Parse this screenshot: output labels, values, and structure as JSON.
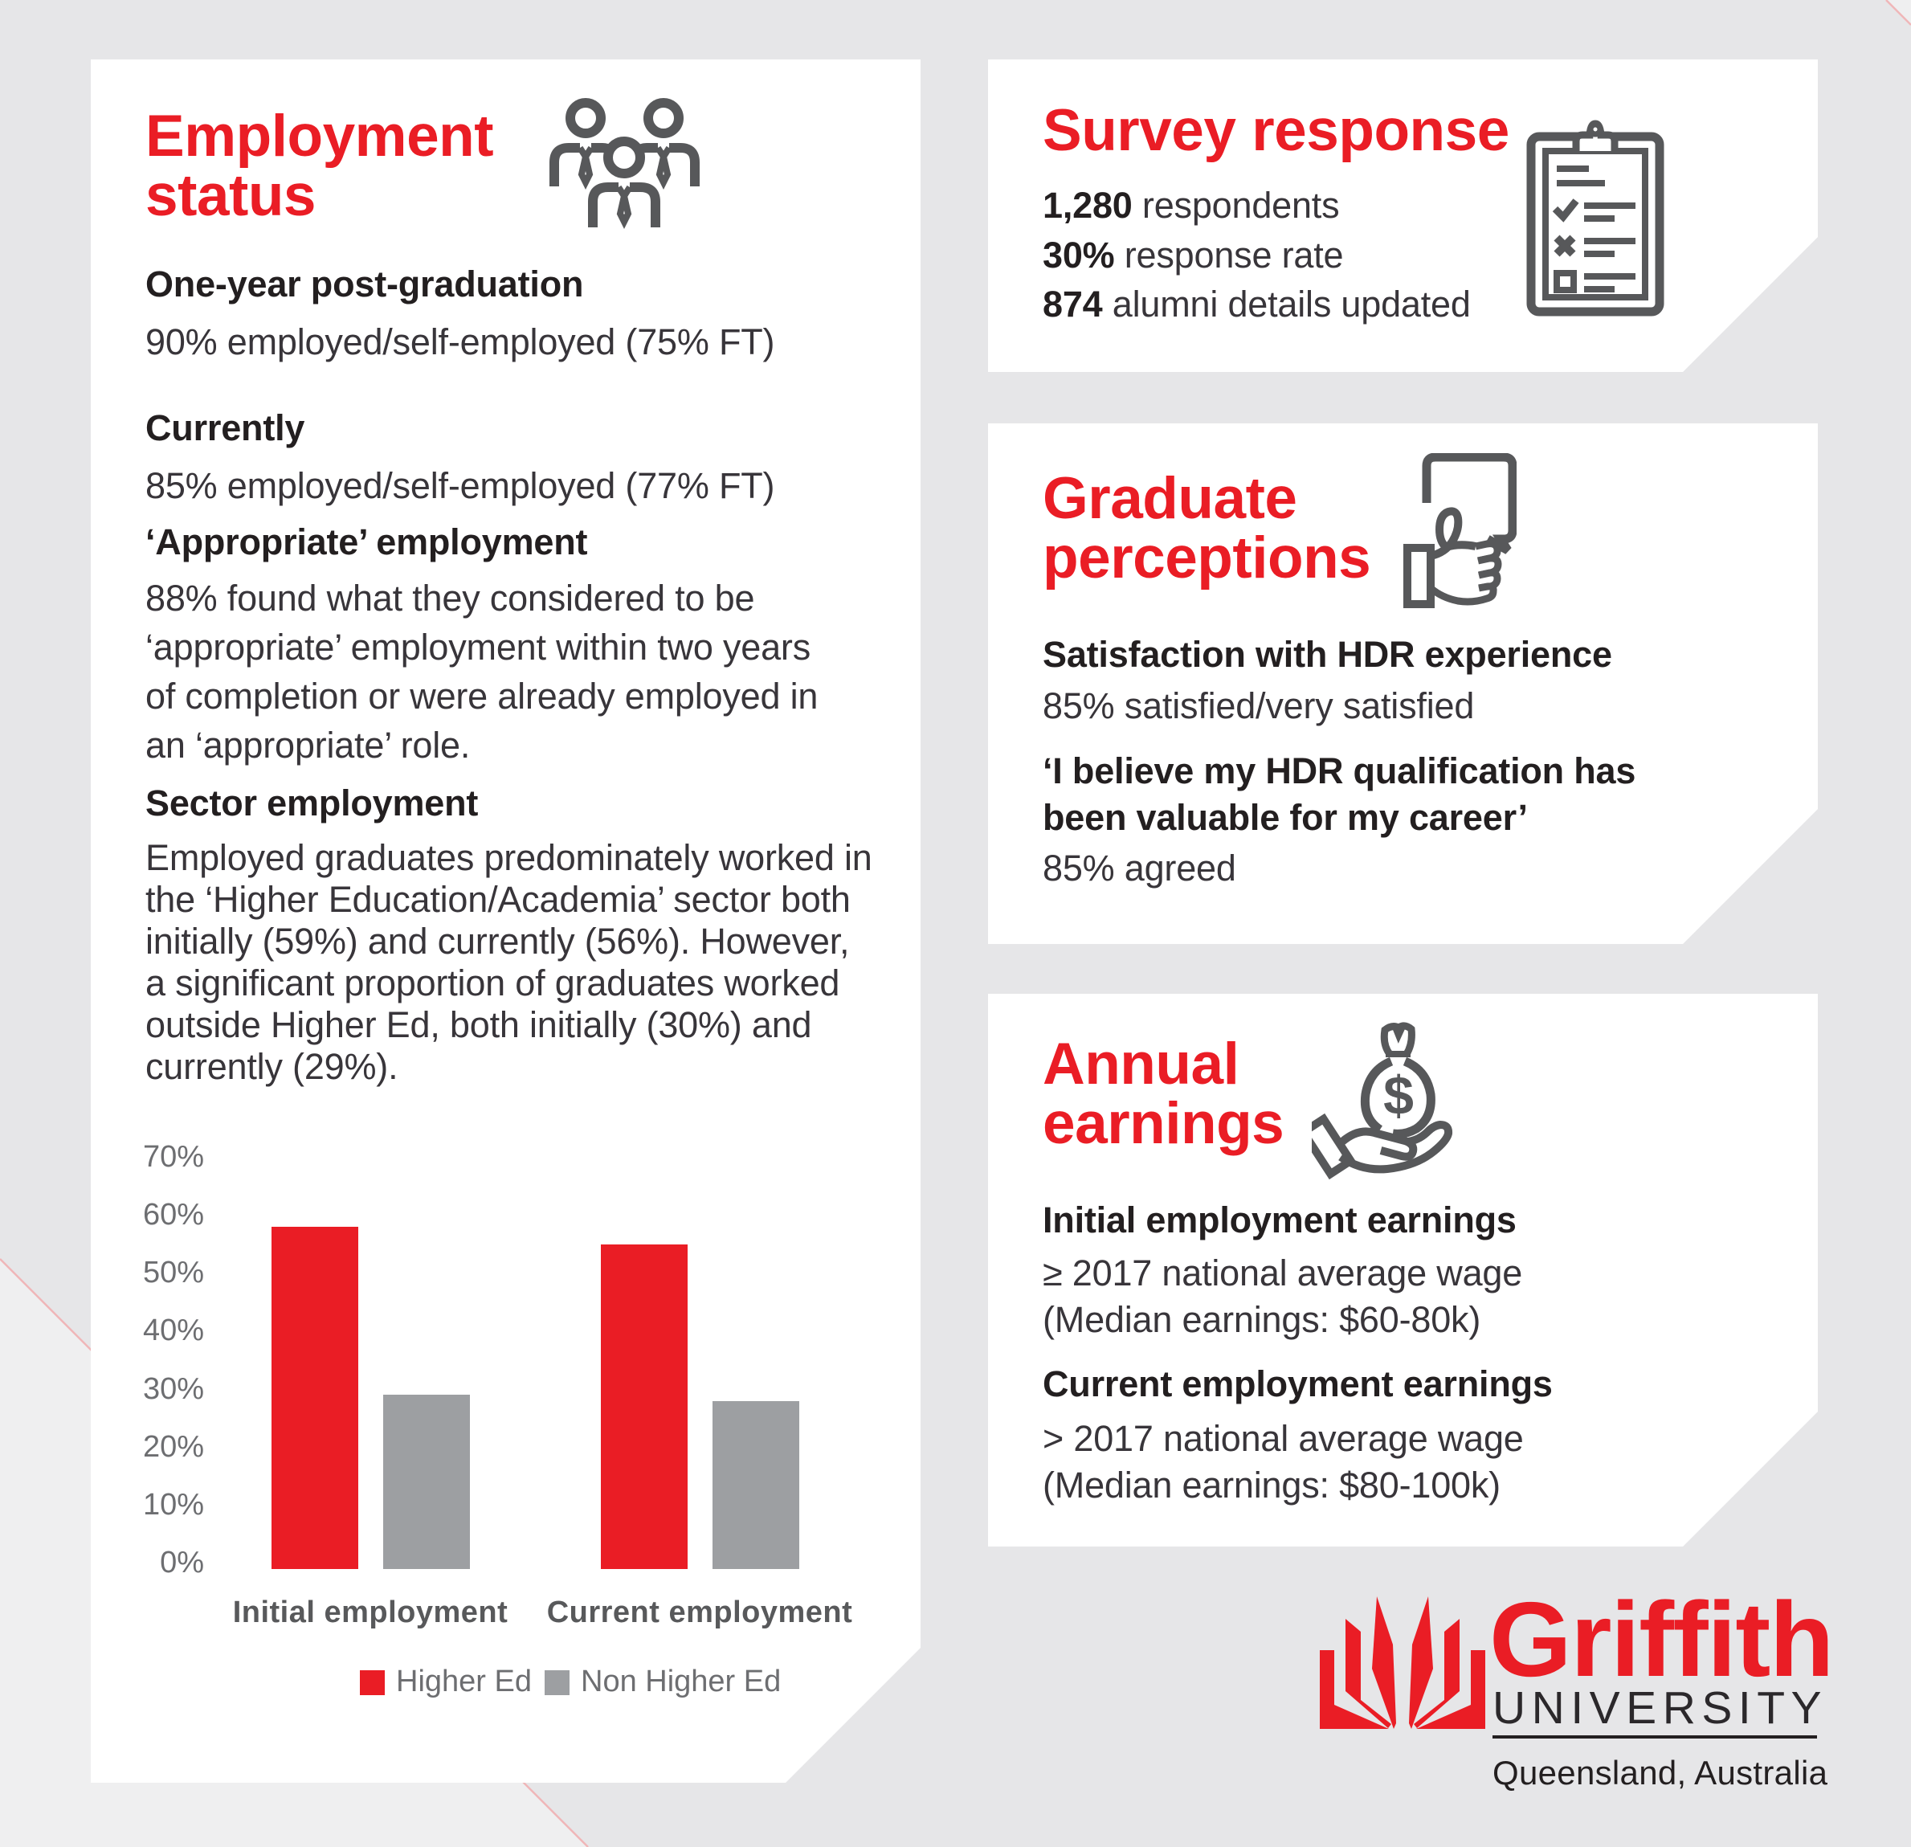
{
  "palette": {
    "brand_red": "#ea1d25",
    "heading_text": "#231f20",
    "body_text": "#38353a",
    "bar_gray": "#9d9fa2",
    "icon_gray": "#57585a",
    "axis_label_gray": "#6d6e71",
    "category_label_gray": "#58595b",
    "background_gray": "#e6e6e8",
    "panel_white": "#ffffff"
  },
  "panels": {
    "employment": {
      "title": "Employment\nstatus",
      "icon": "team-icon",
      "blocks": [
        {
          "heading": "One-year post-graduation",
          "body": "90% employed/self-employed (75% FT)"
        },
        {
          "heading": "Currently",
          "body": "85% employed/self-employed (77% FT)"
        },
        {
          "heading": "‘Appropriate’ employment",
          "body": "88% found what they considered to be\n‘appropriate’ employment within two years\nof completion or were already employed in\nan ‘appropriate’ role."
        },
        {
          "heading": "Sector employment",
          "body": "Employed graduates predominately worked in\nthe ‘Higher Education/Academia’ sector both\ninitially (59%) and currently (56%). However,\na significant proportion of graduates worked\noutside Higher Ed, both initially (30%) and\ncurrently (29%)."
        }
      ]
    },
    "survey": {
      "title": "Survey response",
      "icon": "clipboard-icon",
      "stats": [
        {
          "value": "1,280",
          "label": " respondents"
        },
        {
          "value": "30%",
          "label": " response rate"
        },
        {
          "value": "874",
          "label": " alumni details updated"
        }
      ]
    },
    "perceptions": {
      "title": "Graduate\nperceptions",
      "icon": "thumb-up-icon",
      "blocks": [
        {
          "heading": "Satisfaction with HDR experience",
          "body": "85% satisfied/very satisfied"
        },
        {
          "heading": "‘I believe my HDR qualification has\nbeen valuable for my career’",
          "body": "85% agreed"
        }
      ]
    },
    "earnings": {
      "title": "Annual\nearnings",
      "icon": "money-bag-icon",
      "icon_symbol": "$",
      "blocks": [
        {
          "heading": "Initial employment earnings",
          "body": "≥ 2017 national average wage\n(Median earnings: $60-80k)"
        },
        {
          "heading": "Current employment earnings",
          "body": "> 2017 national average wage\n(Median earnings: $80-100k)"
        }
      ]
    }
  },
  "chart_data": {
    "type": "bar",
    "title": "",
    "xlabel": "",
    "ylabel": "",
    "categories": [
      "Initial employment",
      "Current employment"
    ],
    "series": [
      {
        "name": "Higher Ed",
        "color": "#ea1d25",
        "values": [
          59,
          56
        ]
      },
      {
        "name": "Non Higher Ed",
        "color": "#9d9fa2",
        "values": [
          30,
          29
        ]
      }
    ],
    "ylim": [
      0,
      70
    ],
    "ytick_step": 10,
    "ytick_labels": [
      "0%",
      "10%",
      "20%",
      "30%",
      "40%",
      "50%",
      "60%",
      "70%"
    ],
    "grid": false,
    "legend_position": "bottom"
  },
  "logo": {
    "name": "Griffith",
    "university": "UNIVERSITY",
    "location": "Queensland, Australia"
  }
}
